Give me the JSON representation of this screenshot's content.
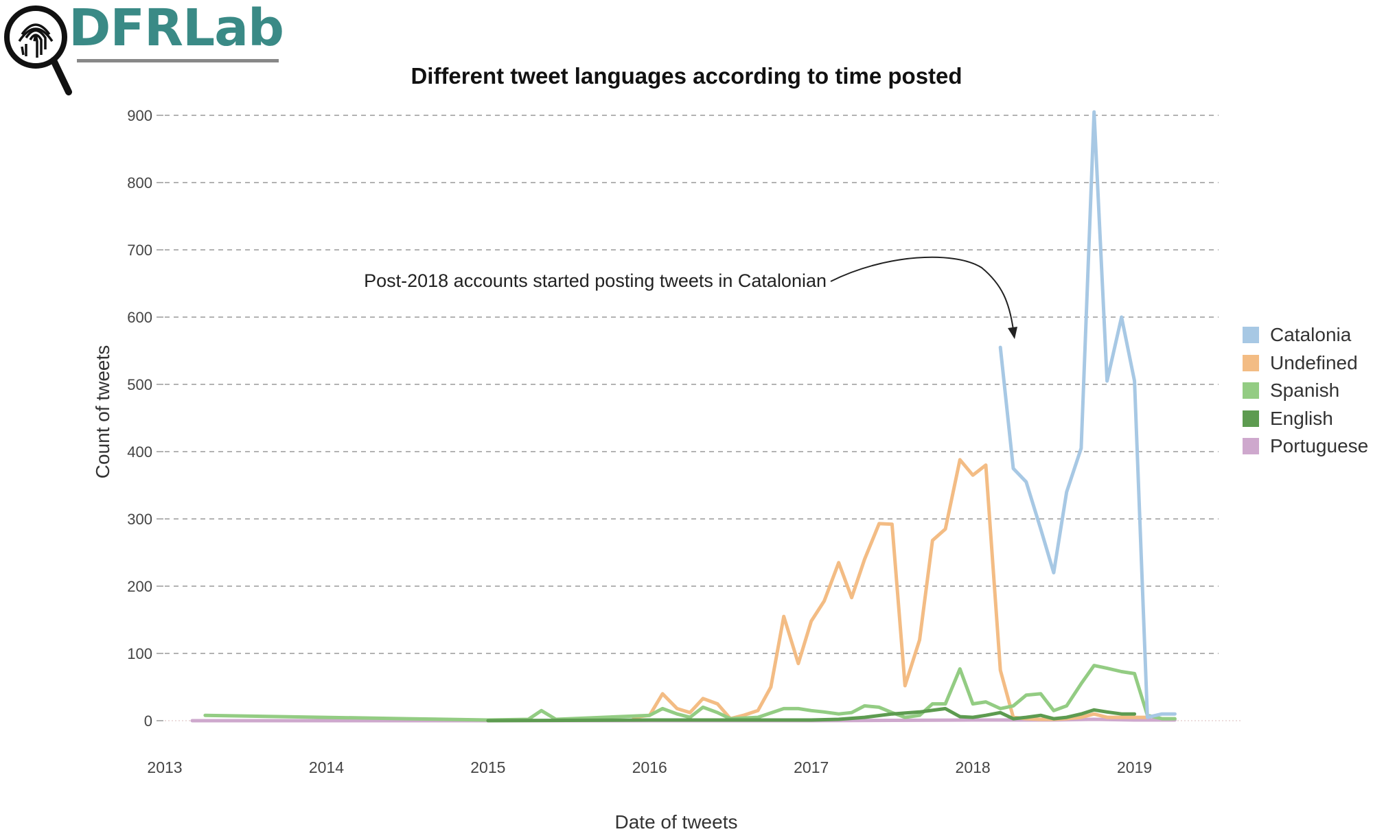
{
  "logo": {
    "name": "DFRLab"
  },
  "chart_data": {
    "type": "line",
    "title": "Different tweet languages according to time posted",
    "xlabel": "Date of tweets",
    "ylabel": "Count of tweets",
    "ylim": [
      0,
      900
    ],
    "yticks": [
      0,
      100,
      200,
      300,
      400,
      500,
      600,
      700,
      800,
      900
    ],
    "xticks": [
      "2013",
      "2014",
      "2015",
      "2016",
      "2017",
      "2018",
      "2019"
    ],
    "xlim": [
      2013.0,
      2019.52
    ],
    "grid": "horizontal-dashed",
    "legend_position": "right",
    "annotation": {
      "text": "Post-2018 accounts started posting tweets in Catalonian",
      "x": 2018.13,
      "y": 570
    },
    "series": [
      {
        "name": "Catalonia",
        "color": "#a7c8e4",
        "x": [
          2018.17,
          2018.25,
          2018.33,
          2018.42,
          2018.5,
          2018.58,
          2018.67,
          2018.75,
          2018.83,
          2018.92,
          2019.0,
          2019.08,
          2019.17,
          2019.25
        ],
        "y": [
          555,
          375,
          355,
          285,
          220,
          340,
          405,
          905,
          505,
          600,
          505,
          5,
          10,
          10
        ]
      },
      {
        "name": "Undefined",
        "color": "#f3bc84",
        "x": [
          2015.9,
          2016.0,
          2016.08,
          2016.17,
          2016.25,
          2016.33,
          2016.42,
          2016.5,
          2016.58,
          2016.67,
          2016.75,
          2016.83,
          2016.92,
          2017.0,
          2017.08,
          2017.17,
          2017.25,
          2017.33,
          2017.42,
          2017.5,
          2017.58,
          2017.67,
          2017.75,
          2017.83,
          2017.92,
          2018.0,
          2018.08,
          2018.17,
          2018.25,
          2018.33,
          2018.42,
          2018.5,
          2018.58,
          2018.67,
          2018.75,
          2018.83,
          2018.92,
          2019.0,
          2019.08
        ],
        "y": [
          5,
          8,
          40,
          18,
          12,
          33,
          25,
          3,
          8,
          15,
          50,
          155,
          85,
          148,
          178,
          235,
          183,
          240,
          293,
          292,
          52,
          120,
          268,
          285,
          388,
          365,
          380,
          75,
          5,
          3,
          2,
          2,
          3,
          5,
          10,
          5,
          5,
          5,
          5
        ]
      },
      {
        "name": "Spanish",
        "color": "#93cc83",
        "x": [
          2013.25,
          2014.5,
          2015.0,
          2015.25,
          2015.33,
          2015.42,
          2016.0,
          2016.08,
          2016.17,
          2016.25,
          2016.33,
          2016.42,
          2016.5,
          2016.67,
          2016.83,
          2016.92,
          2017.0,
          2017.08,
          2017.17,
          2017.25,
          2017.33,
          2017.42,
          2017.5,
          2017.58,
          2017.67,
          2017.75,
          2017.83,
          2017.92,
          2018.0,
          2018.08,
          2018.17,
          2018.25,
          2018.33,
          2018.42,
          2018.5,
          2018.58,
          2018.67,
          2018.75,
          2018.83,
          2018.92,
          2019.0,
          2019.08,
          2019.17,
          2019.25
        ],
        "y": [
          8,
          3,
          1,
          2,
          15,
          2,
          8,
          18,
          10,
          5,
          20,
          12,
          3,
          5,
          18,
          18,
          15,
          13,
          10,
          12,
          22,
          20,
          12,
          5,
          8,
          25,
          25,
          77,
          25,
          28,
          18,
          22,
          38,
          40,
          15,
          22,
          55,
          82,
          78,
          73,
          70,
          8,
          3,
          3
        ]
      },
      {
        "name": "English",
        "color": "#5d9b50",
        "x": [
          2015.0,
          2016.0,
          2017.0,
          2017.17,
          2017.33,
          2017.5,
          2017.67,
          2017.83,
          2017.92,
          2018.0,
          2018.08,
          2018.17,
          2018.25,
          2018.33,
          2018.42,
          2018.5,
          2018.58,
          2018.67,
          2018.75,
          2018.83,
          2018.92,
          2019.0
        ],
        "y": [
          0,
          1,
          1,
          2,
          5,
          10,
          13,
          18,
          6,
          5,
          8,
          12,
          3,
          5,
          8,
          3,
          5,
          10,
          16,
          13,
          10,
          10
        ]
      },
      {
        "name": "Portuguese",
        "color": "#cea8cd",
        "x": [
          2013.17,
          2014.0,
          2015.0,
          2016.0,
          2017.0,
          2018.0,
          2018.25,
          2018.5,
          2018.75,
          2019.0,
          2019.25
        ],
        "y": [
          0,
          0,
          0,
          0,
          0,
          1,
          1,
          1,
          2,
          1,
          1
        ]
      }
    ]
  }
}
